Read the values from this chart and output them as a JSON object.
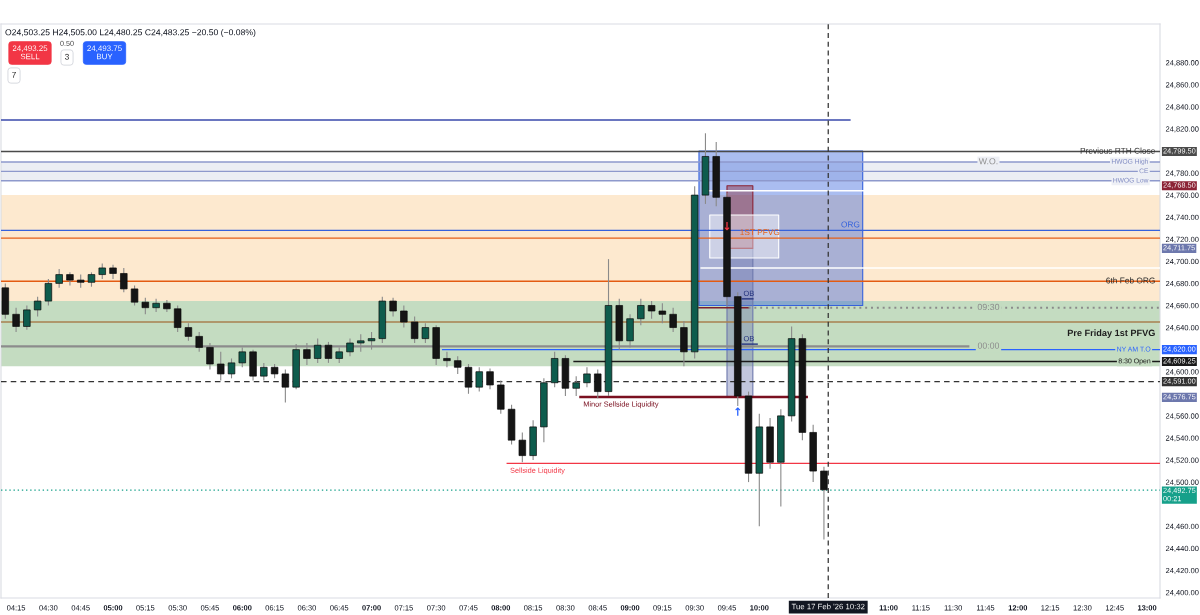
{
  "chart_data": {
    "type": "candlestick",
    "title": "O24,503.25 H24,505.00 L24,480.25 C24,483.25 −20.50 (−0.08%)",
    "x": [
      "2026-02-17T04:10",
      "2026-02-17T04:15",
      "2026-02-17T04:20",
      "2026-02-17T04:25",
      "2026-02-17T04:30",
      "2026-02-17T04:35",
      "2026-02-17T04:40",
      "2026-02-17T04:45",
      "2026-02-17T04:50",
      "2026-02-17T04:55",
      "2026-02-17T05:00",
      "2026-02-17T05:05",
      "2026-02-17T05:10",
      "2026-02-17T05:15",
      "2026-02-17T05:20",
      "2026-02-17T05:25",
      "2026-02-17T05:30",
      "2026-02-17T05:35",
      "2026-02-17T05:40",
      "2026-02-17T05:45",
      "2026-02-17T05:50",
      "2026-02-17T05:55",
      "2026-02-17T06:00",
      "2026-02-17T06:05",
      "2026-02-17T06:10",
      "2026-02-17T06:15",
      "2026-02-17T06:20",
      "2026-02-17T06:25",
      "2026-02-17T06:30",
      "2026-02-17T06:35",
      "2026-02-17T06:40",
      "2026-02-17T06:45",
      "2026-02-17T06:50",
      "2026-02-17T06:55",
      "2026-02-17T07:00",
      "2026-02-17T07:05",
      "2026-02-17T07:10",
      "2026-02-17T07:15",
      "2026-02-17T07:20",
      "2026-02-17T07:25",
      "2026-02-17T07:30",
      "2026-02-17T07:35",
      "2026-02-17T07:40",
      "2026-02-17T07:45",
      "2026-02-17T07:50",
      "2026-02-17T07:55",
      "2026-02-17T08:00",
      "2026-02-17T08:05",
      "2026-02-17T08:10",
      "2026-02-17T08:15",
      "2026-02-17T08:20",
      "2026-02-17T08:25",
      "2026-02-17T08:30",
      "2026-02-17T08:35",
      "2026-02-17T08:40",
      "2026-02-17T08:45",
      "2026-02-17T08:50",
      "2026-02-17T08:55",
      "2026-02-17T09:00",
      "2026-02-17T09:05",
      "2026-02-17T09:10",
      "2026-02-17T09:15",
      "2026-02-17T09:20",
      "2026-02-17T09:25",
      "2026-02-17T09:30",
      "2026-02-17T09:35",
      "2026-02-17T09:40",
      "2026-02-17T09:45",
      "2026-02-17T09:50",
      "2026-02-17T09:55",
      "2026-02-17T10:00",
      "2026-02-17T10:05",
      "2026-02-17T10:10",
      "2026-02-17T10:15",
      "2026-02-17T10:20",
      "2026-02-17T10:25",
      "2026-02-17T10:30"
    ],
    "ohlc": [
      [
        24676,
        24680,
        24648,
        24652
      ],
      [
        24652,
        24658,
        24636,
        24641
      ],
      [
        24641,
        24660,
        24638,
        24656
      ],
      [
        24656,
        24668,
        24650,
        24664
      ],
      [
        24664,
        24684,
        24660,
        24680
      ],
      [
        24680,
        24693,
        24676,
        24688
      ],
      [
        24688,
        24690,
        24678,
        24683
      ],
      [
        24683,
        24688,
        24676,
        24681
      ],
      [
        24681,
        24690,
        24677,
        24688
      ],
      [
        24688,
        24698,
        24684,
        24694
      ],
      [
        24694,
        24697,
        24684,
        24689
      ],
      [
        24689,
        24694,
        24672,
        24675
      ],
      [
        24675,
        24678,
        24660,
        24663
      ],
      [
        24663,
        24667,
        24652,
        24658
      ],
      [
        24658,
        24666,
        24654,
        24662
      ],
      [
        24662,
        24665,
        24654,
        24657
      ],
      [
        24657,
        24660,
        24636,
        24640
      ],
      [
        24640,
        24644,
        24628,
        24632
      ],
      [
        24632,
        24636,
        24618,
        24622
      ],
      [
        24622,
        24626,
        24602,
        24607
      ],
      [
        24607,
        24618,
        24592,
        24598
      ],
      [
        24598,
        24612,
        24594,
        24608
      ],
      [
        24608,
        24622,
        24604,
        24618
      ],
      [
        24618,
        24620,
        24592,
        24596
      ],
      [
        24596,
        24608,
        24592,
        24604
      ],
      [
        24604,
        24607,
        24594,
        24598
      ],
      [
        24598,
        24602,
        24572,
        24586
      ],
      [
        24586,
        24625,
        24584,
        24620
      ],
      [
        24620,
        24626,
        24606,
        24612
      ],
      [
        24612,
        24630,
        24608,
        24624
      ],
      [
        24624,
        24627,
        24608,
        24612
      ],
      [
        24612,
        24622,
        24608,
        24618
      ],
      [
        24618,
        24630,
        24614,
        24626
      ],
      [
        24626,
        24634,
        24618,
        24628
      ],
      [
        24628,
        24636,
        24620,
        24630
      ],
      [
        24630,
        24668,
        24626,
        24664
      ],
      [
        24664,
        24667,
        24650,
        24655
      ],
      [
        24655,
        24660,
        24640,
        24645
      ],
      [
        24645,
        24650,
        24626,
        24630
      ],
      [
        24630,
        24644,
        24626,
        24640
      ],
      [
        24640,
        24642,
        24606,
        24612
      ],
      [
        24612,
        24618,
        24604,
        24610
      ],
      [
        24610,
        24614,
        24598,
        24604
      ],
      [
        24604,
        24607,
        24580,
        24586
      ],
      [
        24586,
        24604,
        24582,
        24600
      ],
      [
        24600,
        24603,
        24584,
        24588
      ],
      [
        24588,
        24592,
        24562,
        24566
      ],
      [
        24566,
        24570,
        24534,
        24538
      ],
      [
        24538,
        24545,
        24518,
        24524
      ],
      [
        24524,
        24556,
        24520,
        24550
      ],
      [
        24550,
        24594,
        24536,
        24590
      ],
      [
        24590,
        24618,
        24586,
        24612
      ],
      [
        24612,
        24615,
        24578,
        24585
      ],
      [
        24585,
        24596,
        24578,
        24590
      ],
      [
        24590,
        24604,
        24586,
        24598
      ],
      [
        24598,
        24602,
        24576,
        24582
      ],
      [
        24582,
        24702,
        24578,
        24660
      ],
      [
        24660,
        24666,
        24620,
        24628
      ],
      [
        24628,
        24652,
        24622,
        24648
      ],
      [
        24648,
        24666,
        24642,
        24660
      ],
      [
        24660,
        24664,
        24648,
        24655
      ],
      [
        24655,
        24662,
        24644,
        24652
      ],
      [
        24652,
        24658,
        24636,
        24640
      ],
      [
        24640,
        24646,
        24605,
        24618
      ],
      [
        24618,
        24768,
        24612,
        24760
      ],
      [
        24760,
        24816,
        24752,
        24795
      ],
      [
        24795,
        24808,
        24750,
        24758
      ],
      [
        24758,
        24762,
        24660,
        24668
      ],
      [
        24668,
        24672,
        24569,
        24578
      ],
      [
        24578,
        24582,
        24500,
        24508
      ],
      [
        24508,
        24562,
        24460,
        24550
      ],
      [
        24550,
        24558,
        24512,
        24518
      ],
      [
        24518,
        24566,
        24478,
        24560
      ],
      [
        24560,
        24641,
        24555,
        24630
      ],
      [
        24630,
        24634,
        24538,
        24545
      ],
      [
        24545,
        24552,
        24500,
        24510
      ],
      [
        24510,
        24514,
        24448,
        24493
      ]
    ],
    "colors": [
      "#151515",
      "#151515",
      "#0e5c4d",
      "#0e5c4d",
      "#0e5c4d",
      "#0e5c4d",
      "#151515",
      "#151515",
      "#0e5c4d",
      "#0e5c4d",
      "#151515",
      "#151515",
      "#151515",
      "#151515",
      "#0e5c4d",
      "#151515",
      "#151515",
      "#151515",
      "#151515",
      "#151515",
      "#151515",
      "#0e5c4d",
      "#0e5c4d",
      "#151515",
      "#0e5c4d",
      "#151515",
      "#151515",
      "#0e5c4d",
      "#151515",
      "#0e5c4d",
      "#151515",
      "#0e5c4d",
      "#0e5c4d",
      "#0e5c4d",
      "#0e5c4d",
      "#0e5c4d",
      "#151515",
      "#151515",
      "#151515",
      "#0e5c4d",
      "#151515",
      "#151515",
      "#151515",
      "#151515",
      "#0e5c4d",
      "#151515",
      "#151515",
      "#151515",
      "#151515",
      "#0e5c4d",
      "#0e5c4d",
      "#0e5c4d",
      "#151515",
      "#0e5c4d",
      "#0e5c4d",
      "#151515",
      "#0e5c4d",
      "#151515",
      "#0e5c4d",
      "#0e5c4d",
      "#151515",
      "#151515",
      "#151515",
      "#151515",
      "#0e5c4d",
      "#0e5c4d",
      "#151515",
      "#151515",
      "#151515",
      "#151515",
      "#0e5c4d",
      "#151515",
      "#0e5c4d",
      "#0e5c4d",
      "#151515",
      "#151515",
      "#151515"
    ],
    "series": [
      {
        "type": "line",
        "x": [
          "2026-02-17T04:08",
          "2026-02-17T10:42"
        ],
        "values": [
          24828,
          24828
        ],
        "color": "#3949ab"
      },
      {
        "type": "line",
        "x": [
          "2026-02-17T09:36",
          "2026-02-17T10:49"
        ],
        "values": [
          24764,
          24764
        ],
        "color": "#ffffff"
      },
      {
        "type": "line",
        "x": [
          "2026-02-17T09:33",
          "2026-02-17T13:06"
        ],
        "values": [
          24694,
          24694
        ],
        "color": "#ffffff"
      },
      {
        "type": "line",
        "name": "ORG",
        "x": [
          "2026-02-17T04:08",
          "2026-02-17T09:32",
          "2026-02-17T10:48",
          "2026-02-17T13:06"
        ],
        "values": [
          24728,
          24728,
          24728,
          24728
        ],
        "lower": [
          null,
          24660,
          24660,
          null
        ],
        "upper": [
          null,
          24800,
          24800,
          null
        ],
        "color": "#3562dc"
      },
      {
        "type": "line",
        "x": [
          "2026-02-17T09:45",
          "2026-02-17T09:57"
        ],
        "values": [
          null,
          null
        ],
        "lower": [
          24576.75,
          24576.75
        ],
        "upper": [
          24711.75,
          24711.75
        ],
        "color": "#6d78ad"
      },
      {
        "type": "line",
        "x": [
          "2026-02-17T09:45",
          "2026-02-17T09:57"
        ],
        "values": [
          null,
          null
        ],
        "lower": [
          24711.75,
          24711.75
        ],
        "upper": [
          24768.5,
          24768.5
        ],
        "color": "#8b2335"
      },
      {
        "type": "line",
        "x": [
          "2026-02-17T09:37",
          "2026-02-17T10:09"
        ],
        "values": [
          null,
          null
        ],
        "lower": [
          24703,
          24703
        ],
        "upper": [
          24742,
          24742
        ],
        "color": "#ffffff"
      },
      {
        "type": "line",
        "name": "1ST PFVG",
        "x": [
          "2026-02-17T04:08",
          "2026-02-17T13:06"
        ],
        "values": [
          24721,
          24721
        ],
        "color": "#e4611a"
      },
      {
        "type": "line",
        "x": [
          "2026-02-17T09:32",
          "2026-02-17T09:55"
        ],
        "values": [
          24658,
          24658
        ],
        "color": "#7a1f2b"
      },
      {
        "type": "line",
        "name": "09:30",
        "x": [
          "2026-02-17T09:55",
          "2026-02-17T13:06"
        ],
        "values": [
          24658,
          24658
        ],
        "color": "#8a8a8a",
        "line_style": "dotted"
      },
      {
        "type": "line",
        "name": "00:00",
        "x": [
          "2026-02-17T04:08",
          "2026-02-17T11:37"
        ],
        "values": [
          24623,
          24623
        ],
        "color": "#8c8c8c"
      },
      {
        "type": "line",
        "name": "NY AM T.O",
        "x": [
          "2026-02-17T07:33",
          "2026-02-17T13:06"
        ],
        "values": [
          24620,
          24620
        ],
        "color": "#2962ff"
      },
      {
        "type": "line",
        "name": "8:30 Open",
        "x": [
          "2026-02-17T08:34",
          "2026-02-17T13:06"
        ],
        "values": [
          24609.25,
          24609.25
        ],
        "color": "#1a1a1a"
      },
      {
        "type": "line",
        "name": "Minor Sellside Liquidity",
        "x": [
          "2026-02-17T08:37",
          "2026-02-17T10:22"
        ],
        "values": [
          24577,
          24577
        ],
        "color": "#7a1020"
      },
      {
        "type": "line",
        "name": "Sellside Liquidity",
        "x": [
          "2026-02-17T08:03",
          "2026-02-17T13:06"
        ],
        "values": [
          24517,
          24517
        ],
        "color": "#f23645"
      },
      {
        "type": "line",
        "name": "OB",
        "x": [
          "2026-02-17T09:52",
          "2026-02-17T09:57"
        ],
        "values": [
          24666,
          24666
        ],
        "color": "#26357f"
      },
      {
        "type": "line",
        "name": "OB",
        "x": [
          "2026-02-17T09:52",
          "2026-02-17T09:59"
        ],
        "values": [
          24625,
          24625
        ],
        "color": "#26357f"
      }
    ],
    "bands": [
      {
        "axis": "y",
        "from": 24664,
        "to": 24760,
        "color": "#fde9cf"
      },
      {
        "axis": "y",
        "from": 24605,
        "to": 24664,
        "color": "#c4dcc1",
        "label": "Pre Friday 1st PFVG"
      },
      {
        "axis": "y",
        "from": 24773,
        "to": 24790,
        "color": "#eceef4",
        "label": "W.O."
      }
    ],
    "ref_lines": [
      {
        "axis": "y",
        "value": 24799.5,
        "label": "Previous RTH Close",
        "color": "#4a4a4a"
      },
      {
        "axis": "y",
        "value": 24790,
        "label": "HWOG High",
        "color": "#8e99cc"
      },
      {
        "axis": "y",
        "value": 24781.5,
        "label": "CE",
        "color": "#8e99cc"
      },
      {
        "axis": "y",
        "value": 24773,
        "label": "HWOG Low",
        "color": "#8e99cc"
      },
      {
        "axis": "y",
        "value": 24682,
        "label": "6th Feb ORG",
        "color": "#e35b12"
      },
      {
        "axis": "y",
        "value": 24645,
        "color": "#a8804f"
      },
      {
        "axis": "y",
        "value": 24591,
        "color": "#333333",
        "line_style": "dashed"
      },
      {
        "axis": "y",
        "value": 24492.75,
        "color": "#16a08a",
        "line_style": "dotted"
      },
      {
        "axis": "x",
        "value": "2026-02-17T10:32",
        "label": "Tue 17 Feb '26 10:32",
        "color": "#333333",
        "line_style": "dashed"
      }
    ],
    "annotations": [
      "24,493.25\nSELL",
      "0.50",
      "3",
      "24,493.75\nBUY",
      "7",
      "24,768.50",
      "24,711.75",
      "24,576.75",
      {
        "text": "24,799.50",
        "x": "2026-02-17T13:05",
        "y": 24799.5
      },
      {
        "text": "24,620.00",
        "x": "2026-02-17T13:05",
        "y": 24620
      },
      {
        "text": "24,609.25",
        "x": "2026-02-17T13:05",
        "y": 24609.25
      },
      {
        "text": "24,591.00",
        "x": "2026-02-17T13:05",
        "y": 24591
      },
      {
        "text": "24,492.75\n00:21",
        "x": "2026-02-17T13:05",
        "y": 24492.75
      },
      {
        "text": "↓",
        "x": "2026-02-17T09:45",
        "y": 24731
      },
      {
        "text": "↑",
        "x": "2026-02-17T09:50",
        "y": 24569
      }
    ],
    "xlim": [
      "2026-02-17T04:08",
      "2026-02-17T13:06"
    ],
    "xticks": [
      {
        "value": "2026-02-17T04:15",
        "label": "04:15"
      },
      {
        "value": "2026-02-17T04:30",
        "label": "04:30"
      },
      {
        "value": "2026-02-17T04:45",
        "label": "04:45"
      },
      {
        "value": "2026-02-17T05:00",
        "label": "05:00"
      },
      {
        "value": "2026-02-17T05:15",
        "label": "05:15"
      },
      {
        "value": "2026-02-17T05:30",
        "label": "05:30"
      },
      {
        "value": "2026-02-17T05:45",
        "label": "05:45"
      },
      {
        "value": "2026-02-17T06:00",
        "label": "06:00"
      },
      {
        "value": "2026-02-17T06:15",
        "label": "06:15"
      },
      {
        "value": "2026-02-17T06:30",
        "label": "06:30"
      },
      {
        "value": "2026-02-17T06:45",
        "label": "06:45"
      },
      {
        "value": "2026-02-17T07:00",
        "label": "07:00"
      },
      {
        "value": "2026-02-17T07:15",
        "label": "07:15"
      },
      {
        "value": "2026-02-17T07:30",
        "label": "07:30"
      },
      {
        "value": "2026-02-17T07:45",
        "label": "07:45"
      },
      {
        "value": "2026-02-17T08:00",
        "label": "08:00"
      },
      {
        "value": "2026-02-17T08:15",
        "label": "08:15"
      },
      {
        "value": "2026-02-17T08:30",
        "label": "08:30"
      },
      {
        "value": "2026-02-17T08:45",
        "label": "08:45"
      },
      {
        "value": "2026-02-17T09:00",
        "label": "09:00"
      },
      {
        "value": "2026-02-17T09:15",
        "label": "09:15"
      },
      {
        "value": "2026-02-17T09:30",
        "label": "09:30"
      },
      {
        "value": "2026-02-17T09:45",
        "label": "09:45"
      },
      {
        "value": "2026-02-17T10:00",
        "label": "10:00"
      },
      {
        "value": "2026-02-17T11:00",
        "label": "11:00"
      },
      {
        "value": "2026-02-17T11:15",
        "label": "11:15"
      },
      {
        "value": "2026-02-17T11:30",
        "label": "11:30"
      },
      {
        "value": "2026-02-17T11:45",
        "label": "11:45"
      },
      {
        "value": "2026-02-17T12:00",
        "label": "12:00"
      },
      {
        "value": "2026-02-17T12:15",
        "label": "12:15"
      },
      {
        "value": "2026-02-17T12:30",
        "label": "12:30"
      },
      {
        "value": "2026-02-17T12:45",
        "label": "12:45"
      },
      {
        "value": "2026-02-17T13:00",
        "label": "13:00"
      }
    ],
    "ylim": [
      24395,
      24915
    ],
    "yticks": [
      {
        "value": 24400,
        "label": "24,400.00"
      },
      {
        "value": 24420,
        "label": "24,420.00"
      },
      {
        "value": 24440,
        "label": "24,440.00"
      },
      {
        "value": 24460,
        "label": "24,460.00"
      },
      {
        "value": 24500,
        "label": "24,500.00"
      },
      {
        "value": 24520,
        "label": "24,520.00"
      },
      {
        "value": 24540,
        "label": "24,540.00"
      },
      {
        "value": 24560,
        "label": "24,560.00"
      },
      {
        "value": 24600,
        "label": "24,600.00"
      },
      {
        "value": 24640,
        "label": "24,640.00"
      },
      {
        "value": 24660,
        "label": "24,660.00"
      },
      {
        "value": 24680,
        "label": "24,680.00"
      },
      {
        "value": 24700,
        "label": "24,700.00"
      },
      {
        "value": 24720,
        "label": "24,720.00"
      },
      {
        "value": 24740,
        "label": "24,740.00"
      },
      {
        "value": 24760,
        "label": "24,760.00"
      },
      {
        "value": 24780,
        "label": "24,780.00"
      },
      {
        "value": 24820,
        "label": "24,820.00"
      },
      {
        "value": 24840,
        "label": "24,840.00"
      },
      {
        "value": 24860,
        "label": "24,860.00"
      },
      {
        "value": 24880,
        "label": "24,880.00"
      }
    ]
  }
}
